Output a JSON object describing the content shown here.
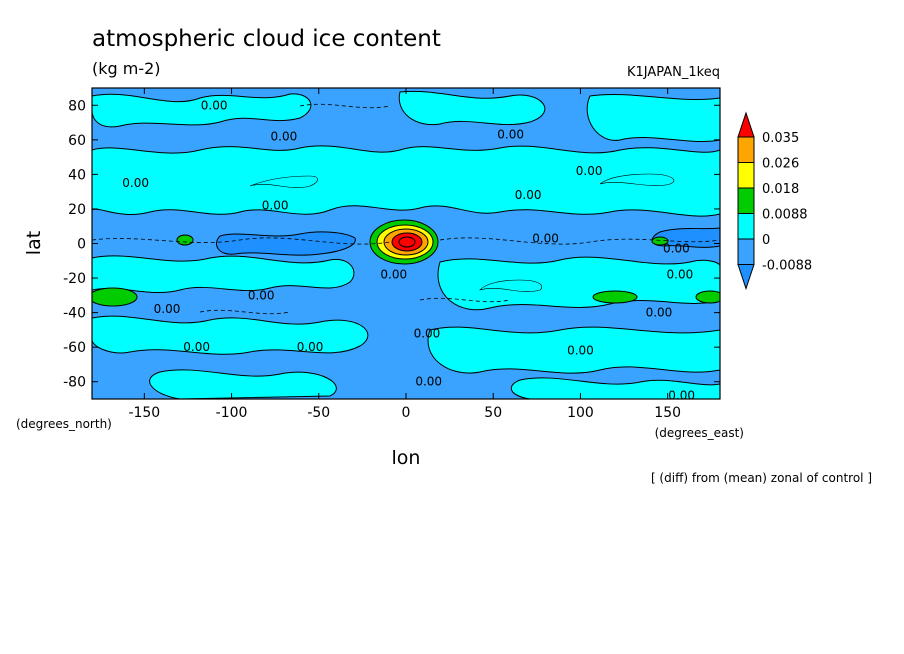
{
  "chart_data": {
    "type": "heatmap",
    "title": "atmospheric cloud ice content",
    "units": "(kg m-2)",
    "run_label": "K1JAPAN_1keq",
    "xlabel": "lon",
    "ylabel": "lat",
    "x_unit_label": "(degrees_east)",
    "y_unit_label": "(degrees_north)",
    "note": "[ (diff) from (mean) zonal of control ]",
    "xlim": [
      -180,
      180
    ],
    "ylim": [
      -90,
      90
    ],
    "x_ticks": [
      -150,
      -100,
      -50,
      0,
      50,
      100,
      150
    ],
    "x_tick_labels": [
      "-150",
      "-100",
      "-50",
      "0",
      "50",
      "100",
      "150"
    ],
    "y_ticks": [
      -80,
      -60,
      -40,
      -20,
      0,
      20,
      40,
      60,
      80
    ],
    "y_tick_labels": [
      "-80",
      "-60",
      "-40",
      "-20",
      "0",
      "20",
      "40",
      "60",
      "80"
    ],
    "colorbar": {
      "levels": [
        -0.0088,
        0,
        0.0088,
        0.018,
        0.026,
        0.035
      ],
      "level_labels": [
        "-0.0088",
        "0",
        "0.0088",
        "0.018",
        "0.026",
        "0.035"
      ],
      "colors": [
        "#1e90ff",
        "#3aa3ff",
        "#00ffff",
        "#00cc00",
        "#ffff00",
        "#ffa500",
        "#ff0000"
      ]
    },
    "contour_labels": [
      {
        "text": "0.00",
        "lon": -110,
        "lat": 80
      },
      {
        "text": "0.00",
        "lon": -70,
        "lat": 62
      },
      {
        "text": "0.00",
        "lon": 60,
        "lat": 63
      },
      {
        "text": "0.00",
        "lon": -155,
        "lat": 35
      },
      {
        "text": "0.00",
        "lon": 105,
        "lat": 42
      },
      {
        "text": "0.00",
        "lon": 70,
        "lat": 28
      },
      {
        "text": "0.00",
        "lon": -75,
        "lat": 22
      },
      {
        "text": "0.00",
        "lon": 80,
        "lat": 3
      },
      {
        "text": "0.00",
        "lon": 155,
        "lat": -3
      },
      {
        "text": "0.00",
        "lon": -7,
        "lat": -18
      },
      {
        "text": "0.00",
        "lon": 157,
        "lat": -18
      },
      {
        "text": "0.00",
        "lon": -83,
        "lat": -30
      },
      {
        "text": "0.00",
        "lon": -137,
        "lat": -38
      },
      {
        "text": "0.00",
        "lon": 145,
        "lat": -40
      },
      {
        "text": "0.00",
        "lon": 12,
        "lat": -52
      },
      {
        "text": "0.00",
        "lon": -120,
        "lat": -60
      },
      {
        "text": "0.00",
        "lon": -55,
        "lat": -60
      },
      {
        "text": "0.00",
        "lon": 100,
        "lat": -62
      },
      {
        "text": "0.00",
        "lon": 13,
        "lat": -80
      },
      {
        "text": "0.00",
        "lon": 158,
        "lat": -88
      }
    ],
    "features": [
      {
        "name": "central-maximum",
        "lon": 0,
        "lat": 2,
        "value_level": 0.035
      },
      {
        "name": "tropical-negative-band-west",
        "lon": -80,
        "lat": 0,
        "value_level": -0.0088
      },
      {
        "name": "tropical-negative-band-east",
        "lon": 165,
        "lat": 5,
        "value_level": -0.0088
      },
      {
        "name": "southern-positive-west",
        "lon": -168,
        "lat": -32,
        "value_level": 0.0088
      },
      {
        "name": "southern-positive-east",
        "lon": 115,
        "lat": -32,
        "value_level": 0.0088
      },
      {
        "name": "equatorial-positive-west",
        "lon": -130,
        "lat": 2,
        "value_level": 0.0088
      },
      {
        "name": "equatorial-positive-east",
        "lon": 145,
        "lat": 2,
        "value_level": 0.0088
      }
    ]
  }
}
